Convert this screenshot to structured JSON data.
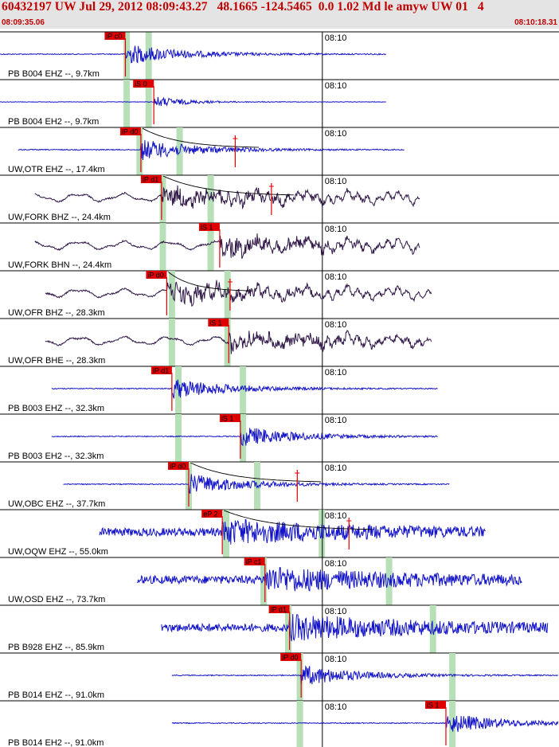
{
  "header": {
    "title": "60432197 UW Jul 29, 2012 08:09:43.27   48.1665 -124.5465  0.0 1.02 Md le amyw UW 01   4",
    "start_time": "08:09:35.06",
    "end_time": "08:10:18.31"
  },
  "colors": {
    "header_bg": "#e4e4e4",
    "header_text": "#c00000",
    "trace_blue": "#1414c8",
    "trace_dark": "#301848",
    "pick_red": "#e00000",
    "pick_band": "#b8e0b8",
    "grid": "#000000"
  },
  "chart_data": {
    "type": "line",
    "x_range_seconds": [
      0,
      43.25
    ],
    "minute_mark_label": "08:10",
    "minute_mark_seconds": 24.94,
    "channels": [
      {
        "label": "PB B004 EHZ --, 9.7km",
        "color": "#1414c8",
        "start_s": 0.0,
        "end_s": 29.9,
        "amplitude": "medium",
        "pick": {
          "label": "iP c0",
          "time_s": 9.7
        },
        "bands_s": [
          9.8,
          11.5
        ],
        "coda_s": null
      },
      {
        "label": "PB B004 EH2 --, 9.7km",
        "color": "#1414c8",
        "start_s": 0.0,
        "end_s": 29.9,
        "amplitude": "low",
        "pick": {
          "label": "iS 0",
          "time_s": 11.9
        },
        "bands_s": [
          9.8,
          11.5
        ],
        "coda_s": null
      },
      {
        "label": "UW,OTR EHZ --, 17.4km",
        "color": "#1414c8",
        "start_s": 1.4,
        "end_s": 31.3,
        "amplitude": "medium",
        "pick": {
          "label": "iP d0",
          "time_s": 10.9
        },
        "bands_s": [
          10.8,
          13.9
        ],
        "coda_s": 18.2
      },
      {
        "label": "UW,FORK BHZ --, 24.4km",
        "color": "#301848",
        "start_s": 2.7,
        "end_s": 32.5,
        "amplitude": "medium",
        "pick": {
          "label": "iP d1",
          "time_s": 12.5
        },
        "bands_s": [
          12.6,
          16.3
        ],
        "coda_s": 21.0
      },
      {
        "label": "UW,FORK BHN --, 24.4km",
        "color": "#301848",
        "start_s": 2.7,
        "end_s": 32.5,
        "amplitude": "medium",
        "pick": {
          "label": "iS 1",
          "time_s": 17.0
        },
        "bands_s": [
          12.6,
          16.3
        ],
        "coda_s": null
      },
      {
        "label": "UW,OFR BHZ --, 28.3km",
        "color": "#301848",
        "start_s": 3.5,
        "end_s": 33.4,
        "amplitude": "medium",
        "pick": {
          "label": "iP d0",
          "time_s": 12.9
        },
        "bands_s": [
          13.3,
          17.6
        ],
        "coda_s": 17.8
      },
      {
        "label": "UW,OFR BHE --, 28.3km",
        "color": "#301848",
        "start_s": 3.5,
        "end_s": 33.4,
        "amplitude": "medium",
        "pick": {
          "label": "iS 1",
          "time_s": 17.7
        },
        "bands_s": [
          13.3,
          17.6
        ],
        "coda_s": null
      },
      {
        "label": "PB B003 EHZ --, 32.3km",
        "color": "#1414c8",
        "start_s": 4.0,
        "end_s": 33.9,
        "amplitude": "medium",
        "pick": {
          "label": "iP d1",
          "time_s": 13.3
        },
        "bands_s": [
          13.8,
          18.8
        ],
        "coda_s": null
      },
      {
        "label": "PB B003 EH2 --, 32.3km",
        "color": "#1414c8",
        "start_s": 4.0,
        "end_s": 33.9,
        "amplitude": "medium",
        "pick": {
          "label": "iS 1",
          "time_s": 18.6
        },
        "bands_s": [
          13.8,
          18.8
        ],
        "coda_s": null
      },
      {
        "label": "UW,OBC EHZ --, 37.7km",
        "color": "#1414c8",
        "start_s": 4.9,
        "end_s": 34.8,
        "amplitude": "medium",
        "pick": {
          "label": "iP d0",
          "time_s": 14.6
        },
        "bands_s": [
          14.6,
          19.9
        ],
        "coda_s": 23.0
      },
      {
        "label": "UW,OQW EHZ --, 55.0km",
        "color": "#1414c8",
        "start_s": 7.7,
        "end_s": 37.6,
        "amplitude": "high",
        "pick": {
          "label": "eP 2",
          "time_s": 17.2
        },
        "bands_s": [
          17.5,
          24.9
        ],
        "coda_s": 27.0
      },
      {
        "label": "UW,OSD EHZ --, 73.7km",
        "color": "#1414c8",
        "start_s": 10.6,
        "end_s": 40.4,
        "amplitude": "high",
        "pick": {
          "label": "iP c1",
          "time_s": 20.5
        },
        "bands_s": [
          20.4,
          30.1
        ],
        "coda_s": null
      },
      {
        "label": "PB B928 EHZ --, 85.9km",
        "color": "#1414c8",
        "start_s": 12.5,
        "end_s": 42.4,
        "amplitude": "high",
        "pick": {
          "label": "iP d1",
          "time_s": 22.4
        },
        "bands_s": [
          22.3,
          33.5
        ],
        "coda_s": null
      },
      {
        "label": "PB B014 EHZ --, 91.0km",
        "color": "#1414c8",
        "start_s": 13.3,
        "end_s": 43.2,
        "amplitude": "medium",
        "pick": {
          "label": "iP d0",
          "time_s": 23.3
        },
        "bands_s": [
          23.2,
          35.0
        ],
        "coda_s": null
      },
      {
        "label": "PB B014 EH2 --, 91.0km",
        "color": "#1414c8",
        "start_s": 13.3,
        "end_s": 43.2,
        "amplitude": "medium",
        "pick": {
          "label": "iS 1",
          "time_s": 34.5
        },
        "bands_s": [
          23.2,
          35.0
        ],
        "coda_s": null
      }
    ]
  }
}
